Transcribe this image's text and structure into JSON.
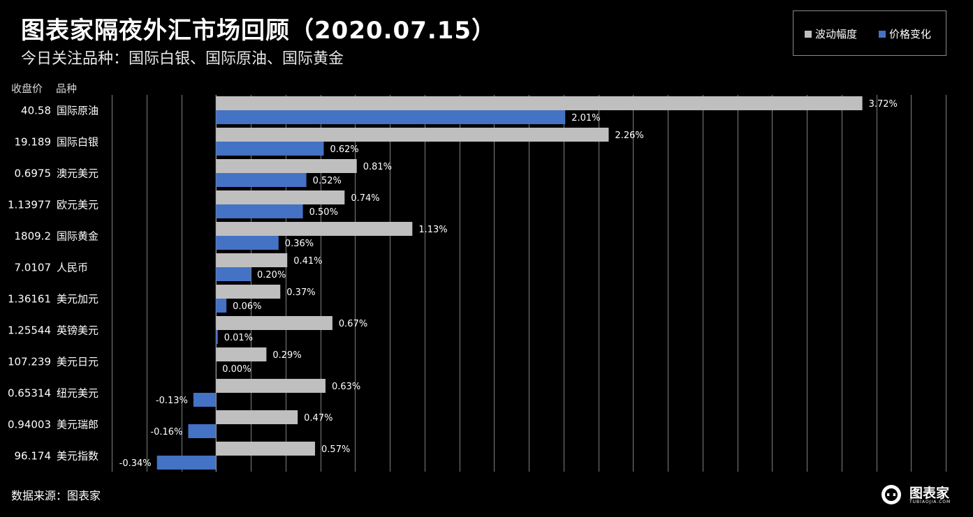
{
  "title": "图表家隔夜外汇市场回顾（2020.07.15）",
  "subtitle": "今日关注品种：国际白银、国际原油、国际黄金",
  "headers": {
    "price": "收盘价",
    "name": "品种"
  },
  "legend": [
    {
      "label": "波动幅度",
      "color": "#BFBFBF"
    },
    {
      "label": "价格变化",
      "color": "#4472C4"
    }
  ],
  "source": "数据来源：图表家",
  "brand": {
    "name": "图表家",
    "sub": "TUBIAOJIA.COM"
  },
  "chart_data": {
    "type": "bar",
    "orientation": "horizontal",
    "value_unit": "%",
    "grid": true,
    "categories": [
      {
        "price": "40.58",
        "name": "国际原油"
      },
      {
        "price": "19.189",
        "name": "国际白银"
      },
      {
        "price": "0.6975",
        "name": "澳元美元"
      },
      {
        "price": "1.13977",
        "name": "欧元美元"
      },
      {
        "price": "1809.2",
        "name": "国际黄金"
      },
      {
        "price": "7.0107",
        "name": "人民币"
      },
      {
        "price": "1.36161",
        "name": "美元加元"
      },
      {
        "price": "1.25544",
        "name": "英镑美元"
      },
      {
        "price": "107.239",
        "name": "美元日元"
      },
      {
        "price": "0.65314",
        "name": "纽元美元"
      },
      {
        "price": "0.94003",
        "name": "美元瑞郎"
      },
      {
        "price": "96.174",
        "name": "美元指数"
      }
    ],
    "series": [
      {
        "name": "波动幅度",
        "color": "#BFBFBF",
        "values": [
          3.72,
          2.26,
          0.81,
          0.74,
          1.13,
          0.41,
          0.37,
          0.67,
          0.29,
          0.63,
          0.47,
          0.57
        ],
        "labels": [
          "3.72%",
          "2.26%",
          "0.81%",
          "0.74%",
          "1.13%",
          "0.41%",
          "0.37%",
          "0.67%",
          "0.29%",
          "0.63%",
          "0.47%",
          "0.57%"
        ]
      },
      {
        "name": "价格变化",
        "color": "#4472C4",
        "values": [
          2.01,
          0.62,
          0.52,
          0.5,
          0.36,
          0.2,
          0.06,
          0.01,
          0.0,
          -0.13,
          -0.16,
          -0.34
        ],
        "labels": [
          "2.01%",
          "0.62%",
          "0.52%",
          "0.50%",
          "0.36%",
          "0.20%",
          "0.06%",
          "0.01%",
          "0.00%",
          "-0.13%",
          "-0.16%",
          "-0.34%"
        ]
      }
    ],
    "xlim": [
      -0.6,
      4.2
    ],
    "gridStep": 0.2
  }
}
